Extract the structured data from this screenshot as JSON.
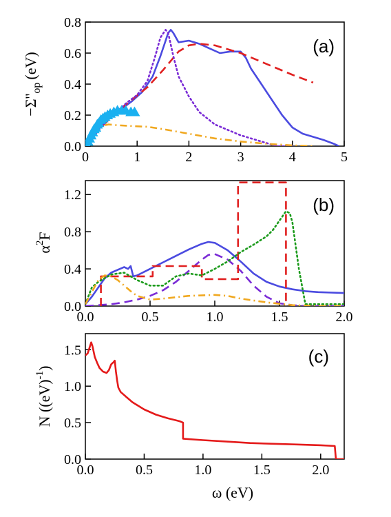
{
  "chart_data": [
    {
      "type": "line",
      "panel_label": "(a)",
      "xlim": [
        0,
        5
      ],
      "ylim": [
        0,
        0.8
      ],
      "xticks": [
        "0",
        "1",
        "2",
        "3",
        "4",
        "5"
      ],
      "yticks": [
        "0.0",
        "0.2",
        "0.4",
        "0.6",
        "0.8"
      ],
      "ylabel": {
        "main": "−Σ''",
        "sub": "op",
        "unit": "(eV)"
      },
      "xlabel": "",
      "series": [
        {
          "color": "#4b4be0",
          "style": "solid",
          "x": [
            0,
            0.1,
            0.2,
            0.3,
            0.4,
            0.5,
            0.7,
            0.9,
            1.1,
            1.3,
            1.45,
            1.55,
            1.6,
            1.65,
            1.7,
            1.8,
            2.0,
            2.2,
            2.4,
            2.6,
            2.8,
            3.0,
            3.1,
            3.2,
            3.4,
            3.6,
            3.8,
            4.0,
            4.2,
            4.4,
            4.6,
            4.8,
            4.9
          ],
          "y": [
            0,
            0.04,
            0.09,
            0.13,
            0.16,
            0.19,
            0.24,
            0.29,
            0.35,
            0.45,
            0.58,
            0.68,
            0.73,
            0.75,
            0.73,
            0.67,
            0.68,
            0.66,
            0.63,
            0.6,
            0.61,
            0.61,
            0.57,
            0.5,
            0.4,
            0.3,
            0.2,
            0.12,
            0.08,
            0.06,
            0.04,
            0.015,
            0
          ]
        },
        {
          "color": "#e02020",
          "style": "dashed",
          "x": [
            0,
            0.3,
            0.6,
            0.9,
            1.2,
            1.5,
            1.8,
            2.0,
            2.2,
            2.5,
            3.0,
            3.5,
            4.0,
            4.4
          ],
          "y": [
            0,
            0.12,
            0.22,
            0.3,
            0.38,
            0.49,
            0.61,
            0.65,
            0.66,
            0.65,
            0.6,
            0.53,
            0.46,
            0.41
          ]
        },
        {
          "color": "#7a2bd6",
          "style": "dotted",
          "x": [
            0,
            0.2,
            0.4,
            0.6,
            0.8,
            1.0,
            1.2,
            1.35,
            1.45,
            1.55,
            1.6,
            1.7,
            1.8,
            2.0,
            2.2,
            2.5,
            3.0,
            3.5,
            3.7,
            4.0
          ],
          "y": [
            0,
            0.08,
            0.16,
            0.22,
            0.28,
            0.33,
            0.42,
            0.58,
            0.7,
            0.75,
            0.73,
            0.58,
            0.45,
            0.32,
            0.22,
            0.14,
            0.07,
            0.02,
            0,
            0
          ]
        },
        {
          "color": "#f0a820",
          "style": "dashdot",
          "x": [
            0,
            0.1,
            0.2,
            0.3,
            0.45,
            0.6,
            0.9,
            1.2,
            1.5,
            2.0,
            2.5,
            3.0,
            3.5,
            4.0,
            4.4
          ],
          "y": [
            0,
            0.07,
            0.11,
            0.13,
            0.14,
            0.135,
            0.13,
            0.125,
            0.11,
            0.08,
            0.05,
            0.03,
            0.015,
            0.005,
            0
          ]
        }
      ],
      "markers": {
        "color": "#1ab0f0",
        "shape": "triangle",
        "x": [
          0.02,
          0.05,
          0.08,
          0.11,
          0.14,
          0.17,
          0.2,
          0.23,
          0.26,
          0.3,
          0.34,
          0.38,
          0.43,
          0.48,
          0.55,
          0.62,
          0.7,
          0.78,
          0.88,
          0.95
        ],
        "y": [
          0.01,
          0.03,
          0.05,
          0.07,
          0.09,
          0.11,
          0.12,
          0.14,
          0.15,
          0.17,
          0.18,
          0.19,
          0.2,
          0.21,
          0.22,
          0.23,
          0.23,
          0.23,
          0.22,
          0.22
        ]
      }
    },
    {
      "type": "line",
      "panel_label": "(b)",
      "xlim": [
        0,
        2.0
      ],
      "ylim": [
        0,
        1.35
      ],
      "xticks": [
        "0.0",
        "0.5",
        "1.0",
        "1.5",
        "2.0"
      ],
      "yticks": [
        "0.0",
        "0.4",
        "0.8",
        "1.2"
      ],
      "ylabel": {
        "main": "α",
        "sup": "2",
        "after": "F"
      },
      "xlabel": "",
      "series": [
        {
          "color": "#4b4be0",
          "style": "solid",
          "x": [
            0,
            0.05,
            0.1,
            0.15,
            0.2,
            0.25,
            0.3,
            0.33,
            0.35,
            0.37,
            0.4,
            0.5,
            0.6,
            0.7,
            0.8,
            0.9,
            0.95,
            1.0,
            1.1,
            1.2,
            1.3,
            1.4,
            1.5,
            1.6,
            1.7,
            1.8,
            2.0
          ],
          "y": [
            0.02,
            0.1,
            0.2,
            0.3,
            0.36,
            0.39,
            0.42,
            0.4,
            0.43,
            0.32,
            0.33,
            0.4,
            0.47,
            0.54,
            0.61,
            0.67,
            0.69,
            0.68,
            0.6,
            0.48,
            0.35,
            0.26,
            0.21,
            0.18,
            0.16,
            0.15,
            0.14
          ]
        },
        {
          "color": "#7a2bd6",
          "style": "dashed",
          "x": [
            0,
            0.1,
            0.2,
            0.3,
            0.4,
            0.5,
            0.6,
            0.7,
            0.8,
            0.9,
            0.95,
            1.0,
            1.1,
            1.2,
            1.3,
            1.4,
            1.5,
            1.6,
            1.7,
            1.8,
            2.0
          ],
          "y": [
            0,
            0.01,
            0.02,
            0.04,
            0.07,
            0.11,
            0.17,
            0.26,
            0.38,
            0.5,
            0.55,
            0.56,
            0.5,
            0.38,
            0.22,
            0.1,
            0.03,
            0.01,
            0,
            0,
            0
          ]
        },
        {
          "color": "#e02020",
          "style": "dashed",
          "x": [
            0.12,
            0.12,
            0.52,
            0.52,
            0.9,
            0.9,
            1.18,
            1.18,
            1.55,
            1.55
          ],
          "y": [
            0,
            0.32,
            0.32,
            0.43,
            0.43,
            0.29,
            0.29,
            1.33,
            1.33,
            0
          ]
        },
        {
          "color": "#1a9a1a",
          "style": "dotted",
          "x": [
            0,
            0.05,
            0.1,
            0.15,
            0.2,
            0.3,
            0.4,
            0.5,
            0.55,
            0.6,
            0.7,
            0.8,
            0.9,
            1.0,
            1.1,
            1.2,
            1.3,
            1.4,
            1.45,
            1.5,
            1.55,
            1.58,
            1.6,
            1.65,
            1.7,
            1.8,
            1.9,
            2.0
          ],
          "y": [
            0.02,
            0.2,
            0.26,
            0.3,
            0.34,
            0.36,
            0.28,
            0.22,
            0.22,
            0.22,
            0.32,
            0.35,
            0.33,
            0.4,
            0.48,
            0.58,
            0.66,
            0.75,
            0.82,
            0.92,
            1.02,
            1.0,
            0.9,
            0.4,
            0.02,
            0.02,
            0.02,
            0.02
          ]
        },
        {
          "color": "#f0a820",
          "style": "dashdot",
          "x": [
            0,
            0.05,
            0.1,
            0.15,
            0.2,
            0.25,
            0.3,
            0.35,
            0.4,
            0.5,
            0.6,
            0.8,
            1.0,
            1.1,
            1.2,
            1.4,
            1.6,
            1.8,
            2.0
          ],
          "y": [
            0.02,
            0.15,
            0.28,
            0.33,
            0.32,
            0.28,
            0.22,
            0.16,
            0.11,
            0.07,
            0.08,
            0.11,
            0.12,
            0.11,
            0.08,
            0.04,
            0.01,
            0,
            0
          ]
        }
      ]
    },
    {
      "type": "line",
      "panel_label": "(c)",
      "xlim": [
        0,
        2.2
      ],
      "ylim": [
        0,
        1.72
      ],
      "xticks": [
        "0.0",
        "0.5",
        "1.0",
        "1.5",
        "2.0"
      ],
      "yticks": [
        "0.0",
        "0.5",
        "1.0",
        "1.5"
      ],
      "ylabel": {
        "main": "N ((eV)",
        "sup": "-1",
        "after": ")"
      },
      "xlabel": "ω (eV)",
      "series": [
        {
          "color": "#e41a1a",
          "style": "solid",
          "x": [
            0,
            0.02,
            0.04,
            0.05,
            0.06,
            0.08,
            0.1,
            0.12,
            0.15,
            0.18,
            0.2,
            0.22,
            0.24,
            0.25,
            0.26,
            0.27,
            0.28,
            0.3,
            0.35,
            0.4,
            0.5,
            0.6,
            0.7,
            0.8,
            0.83,
            0.83,
            1.0,
            1.2,
            1.4,
            1.6,
            1.8,
            2.0,
            2.12,
            2.13,
            2.2
          ],
          "y": [
            1.42,
            1.45,
            1.55,
            1.6,
            1.55,
            1.4,
            1.32,
            1.25,
            1.2,
            1.18,
            1.22,
            1.3,
            1.33,
            1.35,
            1.2,
            1.08,
            0.98,
            0.92,
            0.85,
            0.78,
            0.68,
            0.61,
            0.56,
            0.52,
            0.5,
            0.28,
            0.26,
            0.24,
            0.22,
            0.21,
            0.2,
            0.19,
            0.18,
            0,
            0
          ]
        }
      ]
    }
  ]
}
